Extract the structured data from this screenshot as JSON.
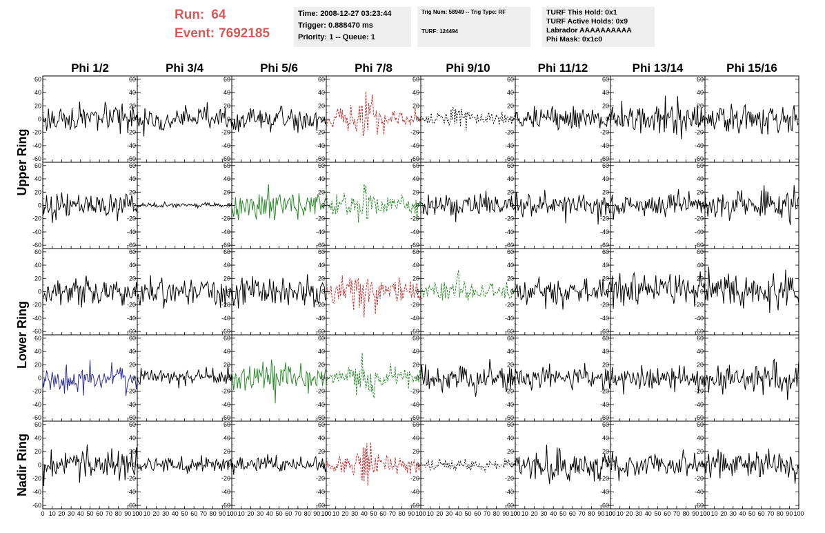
{
  "header": {
    "run_label": "Run:",
    "run_value": "64",
    "event_label": "Event:",
    "event_value": "7692185"
  },
  "info_boxes": {
    "time": {
      "line1": "Time: 2008-12-27 03:23:44",
      "line2": "Trigger: 0.888470 ms",
      "line3": "Priority: 1 -- Queue: 1"
    },
    "trig": {
      "line1": "Trig Num: 58949 -- Trig Type: RF",
      "line2": "TURF: 124494"
    },
    "turf": {
      "line1": "TURF This Hold: 0x1",
      "line2": "TURF Active Holds: 0x9",
      "line3": "Labrador AAAAAAAAAA",
      "line4": "Phi Mask: 0x1c0"
    }
  },
  "chart_data": {
    "type": "line",
    "columns": [
      "Phi 1/2",
      "Phi 3/4",
      "Phi 5/6",
      "Phi 7/8",
      "Phi 9/10",
      "Phi 11/12",
      "Phi 13/14",
      "Phi 15/16"
    ],
    "rows": [
      {
        "label": "Upper Ring",
        "spans": 2
      },
      {
        "label": "Lower Ring",
        "spans": 2
      },
      {
        "label": "Nadir Ring",
        "spans": 1
      }
    ],
    "xlim": [
      0,
      100
    ],
    "x_ticks": [
      0,
      10,
      20,
      30,
      40,
      50,
      60,
      70,
      80,
      90,
      100
    ],
    "ylim": [
      -65,
      65
    ],
    "y_ticks": [
      60,
      40,
      20,
      0,
      -20,
      -40,
      -60
    ],
    "colors": {
      "black": "#000000",
      "red": "#c03030",
      "green": "#2a8a2a",
      "blue": "#2a2a9a"
    },
    "panels": [
      {
        "row": 0,
        "col": 0,
        "color": "black",
        "style": "solid",
        "amplitude": 18
      },
      {
        "row": 0,
        "col": 1,
        "color": "black",
        "style": "solid",
        "amplitude": 16
      },
      {
        "row": 0,
        "col": 2,
        "color": "black",
        "style": "solid",
        "amplitude": 18
      },
      {
        "row": 0,
        "col": 3,
        "color": "red",
        "style": "dashed",
        "amplitude": 14,
        "burst": 48
      },
      {
        "row": 0,
        "col": 4,
        "color": "black",
        "style": "dotted",
        "amplitude": 8,
        "burst": 28
      },
      {
        "row": 0,
        "col": 5,
        "color": "black",
        "style": "solid",
        "amplitude": 16
      },
      {
        "row": 0,
        "col": 6,
        "color": "black",
        "style": "solid",
        "amplitude": 20
      },
      {
        "row": 0,
        "col": 7,
        "color": "black",
        "style": "solid",
        "amplitude": 22
      },
      {
        "row": 1,
        "col": 0,
        "color": "black",
        "style": "solid",
        "amplitude": 18
      },
      {
        "row": 1,
        "col": 1,
        "color": "black",
        "style": "solid",
        "amplitude": 3
      },
      {
        "row": 1,
        "col": 2,
        "color": "green",
        "style": "solid",
        "amplitude": 18,
        "burst": 30
      },
      {
        "row": 1,
        "col": 3,
        "color": "green",
        "style": "dashed",
        "amplitude": 14,
        "burst": 45
      },
      {
        "row": 1,
        "col": 4,
        "color": "black",
        "style": "solid",
        "amplitude": 18
      },
      {
        "row": 1,
        "col": 5,
        "color": "black",
        "style": "solid",
        "amplitude": 18
      },
      {
        "row": 1,
        "col": 6,
        "color": "black",
        "style": "solid",
        "amplitude": 16
      },
      {
        "row": 1,
        "col": 7,
        "color": "black",
        "style": "solid",
        "amplitude": 24
      },
      {
        "row": 2,
        "col": 0,
        "color": "black",
        "style": "solid",
        "amplitude": 20
      },
      {
        "row": 2,
        "col": 1,
        "color": "black",
        "style": "solid",
        "amplitude": 20
      },
      {
        "row": 2,
        "col": 2,
        "color": "black",
        "style": "solid",
        "amplitude": 20
      },
      {
        "row": 2,
        "col": 3,
        "color": "red",
        "style": "dashed",
        "amplitude": 18,
        "burst": 35
      },
      {
        "row": 2,
        "col": 4,
        "color": "green",
        "style": "dashed",
        "amplitude": 10,
        "burst": 30
      },
      {
        "row": 2,
        "col": 5,
        "color": "black",
        "style": "solid",
        "amplitude": 18
      },
      {
        "row": 2,
        "col": 6,
        "color": "black",
        "style": "solid",
        "amplitude": 22
      },
      {
        "row": 2,
        "col": 7,
        "color": "black",
        "style": "solid",
        "amplitude": 22
      },
      {
        "row": 3,
        "col": 0,
        "color": "blue",
        "style": "solid",
        "amplitude": 18
      },
      {
        "row": 3,
        "col": 1,
        "color": "black",
        "style": "solid",
        "amplitude": 12
      },
      {
        "row": 3,
        "col": 2,
        "color": "green",
        "style": "solid",
        "amplitude": 16,
        "burst": 35
      },
      {
        "row": 3,
        "col": 3,
        "color": "green",
        "style": "dashed",
        "amplitude": 12,
        "burst": 38
      },
      {
        "row": 3,
        "col": 4,
        "color": "black",
        "style": "solid",
        "amplitude": 20
      },
      {
        "row": 3,
        "col": 5,
        "color": "black",
        "style": "solid",
        "amplitude": 16
      },
      {
        "row": 3,
        "col": 6,
        "color": "black",
        "style": "solid",
        "amplitude": 14
      },
      {
        "row": 3,
        "col": 7,
        "color": "black",
        "style": "solid",
        "amplitude": 20
      },
      {
        "row": 4,
        "col": 0,
        "color": "black",
        "style": "solid",
        "amplitude": 20
      },
      {
        "row": 4,
        "col": 1,
        "color": "black",
        "style": "solid",
        "amplitude": 10
      },
      {
        "row": 4,
        "col": 2,
        "color": "black",
        "style": "solid",
        "amplitude": 12
      },
      {
        "row": 4,
        "col": 3,
        "color": "red",
        "style": "dashed",
        "amplitude": 12,
        "burst": 40
      },
      {
        "row": 4,
        "col": 4,
        "color": "black",
        "style": "dotted",
        "amplitude": 8
      },
      {
        "row": 4,
        "col": 5,
        "color": "black",
        "style": "solid",
        "amplitude": 20
      },
      {
        "row": 4,
        "col": 6,
        "color": "black",
        "style": "solid",
        "amplitude": 16
      },
      {
        "row": 4,
        "col": 7,
        "color": "black",
        "style": "solid",
        "amplitude": 18
      }
    ]
  }
}
